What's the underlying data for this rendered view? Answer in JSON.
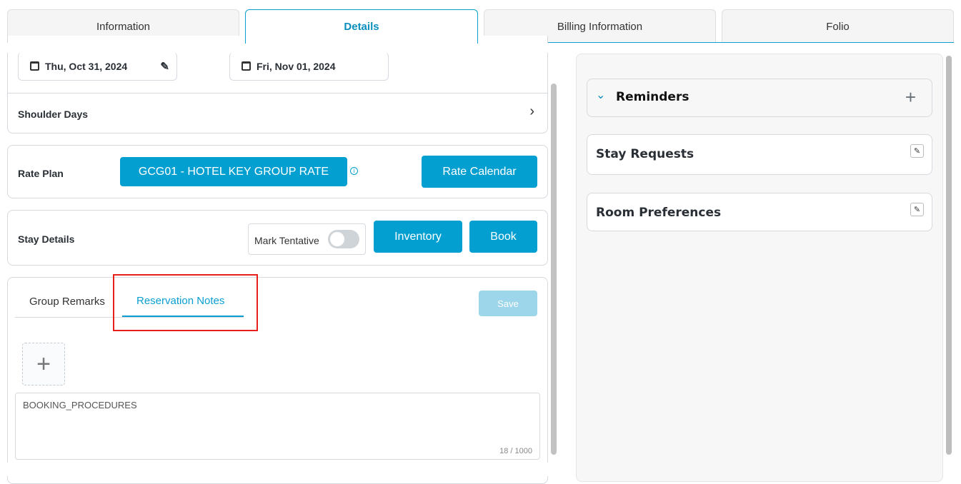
{
  "tabs": [
    {
      "label": "Information"
    },
    {
      "label": "Details",
      "active": true
    },
    {
      "label": "Billing Information"
    },
    {
      "label": "Folio"
    }
  ],
  "dates": {
    "arrival": "Thu, Oct 31, 2024",
    "departure": "Fri, Nov 01, 2024"
  },
  "shoulder_days": "Shoulder Days",
  "rate_plan": {
    "label": "Rate Plan",
    "value": "GCG01 - HOTEL KEY GROUP RATE",
    "calendar_button": "Rate Calendar"
  },
  "stay_details": {
    "label": "Stay Details",
    "mark_tentative": "Mark Tentative",
    "tentative_on": false,
    "inventory_button": "Inventory",
    "book_button": "Book"
  },
  "notes": {
    "tabs": [
      {
        "label": "Group Remarks"
      },
      {
        "label": "Reservation Notes",
        "active": true
      }
    ],
    "save_button": "Save",
    "text": "BOOKING_PROCEDURES",
    "counter": "18 / 1000"
  },
  "right": {
    "reminders": "Reminders",
    "stay_requests": "Stay Requests",
    "room_preferences": "Room Preferences"
  },
  "colors": {
    "accent": "#039fd0",
    "highlight": "#e8201c"
  }
}
